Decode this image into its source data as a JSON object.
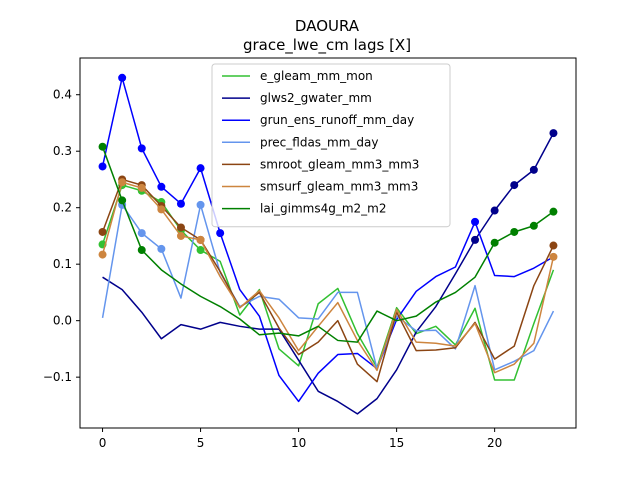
{
  "chart_data": {
    "type": "line",
    "title": "DAOURA",
    "subtitle": "grace_lwe_cm lags [X]",
    "xlabel": "",
    "ylabel": "",
    "xlim": [
      -1.15,
      24.15
    ],
    "ylim": [
      -0.19,
      0.465
    ],
    "xticks": [
      0,
      5,
      10,
      15,
      20
    ],
    "yticks": [
      -0.1,
      0.0,
      0.1,
      0.2,
      0.3,
      0.4
    ],
    "ytick_labels": [
      "−0.1",
      "0.0",
      "0.1",
      "0.2",
      "0.3",
      "0.4"
    ],
    "legend_placement": "top-center",
    "grid": false,
    "x": [
      0,
      1,
      2,
      3,
      4,
      5,
      6,
      7,
      8,
      9,
      10,
      11,
      12,
      13,
      14,
      15,
      16,
      17,
      18,
      19,
      20,
      21,
      22,
      23
    ],
    "series": [
      {
        "name": "e_gleam_mm_mon",
        "color": "#32c032",
        "values": [
          0.135,
          0.24,
          0.23,
          0.21,
          0.16,
          0.125,
          0.105,
          0.01,
          0.055,
          -0.05,
          -0.08,
          0.03,
          0.057,
          -0.023,
          -0.083,
          0.023,
          -0.023,
          -0.01,
          -0.043,
          0.022,
          -0.105,
          -0.105,
          -0.005,
          0.09
        ],
        "markers": [
          0,
          1,
          2,
          3,
          4,
          5
        ]
      },
      {
        "name": "glws2_gwater_mm",
        "color": "#00008b",
        "values": [
          0.077,
          0.055,
          0.015,
          -0.032,
          -0.007,
          -0.015,
          -0.003,
          -0.01,
          -0.015,
          -0.015,
          -0.07,
          -0.125,
          -0.143,
          -0.165,
          -0.138,
          -0.087,
          -0.02,
          0.025,
          0.083,
          0.143,
          0.195,
          0.24,
          0.267,
          0.332
        ],
        "markers": [
          19,
          20,
          21,
          22,
          23
        ]
      },
      {
        "name": "grun_ens_runoff_mm_day",
        "color": "#0000ff",
        "values": [
          0.273,
          0.43,
          0.305,
          0.237,
          0.207,
          0.27,
          0.155,
          0.055,
          0.008,
          -0.097,
          -0.143,
          -0.093,
          -0.06,
          -0.058,
          -0.085,
          0.002,
          0.052,
          0.078,
          0.095,
          0.175,
          0.08,
          0.078,
          0.093,
          0.113
        ],
        "markers": [
          0,
          1,
          2,
          3,
          4,
          5,
          6,
          19
        ]
      },
      {
        "name": "prec_fldas_mm_day",
        "color": "#6495ed",
        "values": [
          0.005,
          0.205,
          0.155,
          0.127,
          0.04,
          0.205,
          0.085,
          0.025,
          0.043,
          0.038,
          0.005,
          0.003,
          0.05,
          0.05,
          -0.085,
          0.008,
          -0.018,
          -0.017,
          -0.05,
          0.062,
          -0.087,
          -0.072,
          -0.053,
          0.017
        ],
        "markers": [
          1,
          2,
          3,
          5
        ]
      },
      {
        "name": "smroot_gleam_mm3_mm3",
        "color": "#8b4513",
        "values": [
          0.157,
          0.25,
          0.24,
          0.203,
          0.165,
          0.143,
          0.087,
          0.023,
          0.05,
          -0.013,
          -0.06,
          -0.038,
          0.0,
          -0.077,
          -0.108,
          0.015,
          -0.053,
          -0.052,
          -0.048,
          -0.003,
          -0.068,
          -0.045,
          0.062,
          0.133
        ],
        "markers": [
          0,
          1,
          2,
          3,
          4,
          5,
          23
        ]
      },
      {
        "name": "smsurf_gleam_mm3_mm3",
        "color": "#cd853f",
        "values": [
          0.117,
          0.245,
          0.235,
          0.197,
          0.15,
          0.143,
          0.078,
          0.023,
          0.053,
          0.005,
          -0.053,
          -0.01,
          0.032,
          -0.035,
          -0.088,
          0.02,
          -0.038,
          -0.04,
          -0.045,
          -0.005,
          -0.092,
          -0.077,
          -0.04,
          0.113
        ],
        "markers": [
          0,
          1,
          2,
          3,
          4,
          5,
          23
        ]
      },
      {
        "name": "lai_gimms4g_m2_m2",
        "color": "#008000",
        "values": [
          0.308,
          0.213,
          0.125,
          0.09,
          0.065,
          0.043,
          0.025,
          0.003,
          -0.025,
          -0.022,
          -0.027,
          -0.01,
          -0.035,
          -0.038,
          0.017,
          -0.0,
          0.008,
          0.033,
          0.05,
          0.077,
          0.138,
          0.157,
          0.168,
          0.193
        ],
        "markers": [
          0,
          1,
          2,
          20,
          21,
          22,
          23
        ]
      }
    ]
  }
}
